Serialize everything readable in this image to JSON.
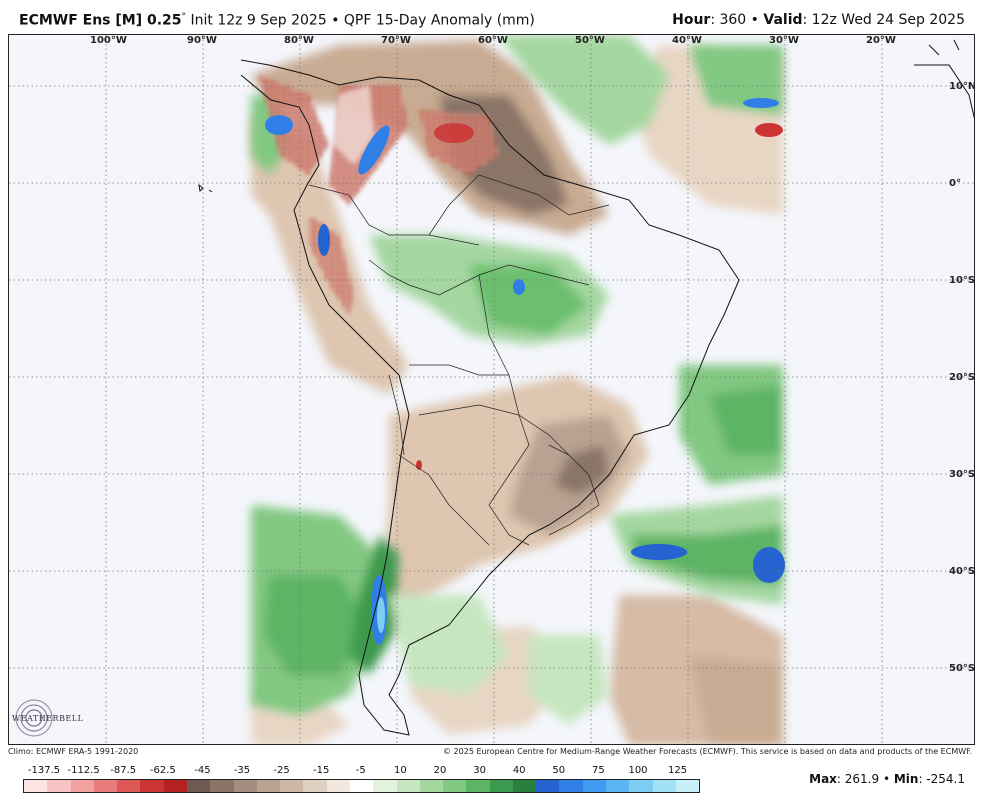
{
  "header": {
    "model": "ECMWF Ens [M] 0.25",
    "degree_mark": "°",
    "init": " Init 12z 9 Sep 2025 • QPF 15-Day Anomaly (mm)",
    "hour_label": "Hour",
    "hour_value": ": 360 • ",
    "valid_label": "Valid",
    "valid_value": ": 12z Wed 24 Sep 2025"
  },
  "map": {
    "lon_labels": [
      "100°W",
      "90°W",
      "80°W",
      "70°W",
      "60°W",
      "50°W",
      "40°W",
      "30°W",
      "20°W"
    ],
    "lat_labels": [
      "10°N",
      "0°",
      "10°S",
      "20°S",
      "30°S",
      "40°S",
      "50°S"
    ],
    "colors": {
      "ocean": "#f4f6fb",
      "dry_light": "#e8d6c4",
      "dry_mid": "#c9ab93",
      "dry_dark": "#8a7466",
      "wet_light": "#c6e6c0",
      "wet_mid": "#6cbf6e",
      "wet_dark": "#3c9a4e",
      "very_wet": "#2b6fe0",
      "very_dry": "#c9302c"
    }
  },
  "logo": {
    "text": "WEATHERBELL"
  },
  "credits": {
    "climo": "Climo: ECMWF ERA-5 1991-2020",
    "copyright": "© 2025 European Centre for Medium-Range Weather Forecasts (ECMWF). This service is based on data and products of the ECMWF."
  },
  "colorbar": {
    "labels": [
      "-137.5",
      "-112.5",
      "-87.5",
      "-62.5",
      "-45",
      "-35",
      "-25",
      "-15",
      "-5",
      "10",
      "20",
      "30",
      "40",
      "50",
      "75",
      "100",
      "125"
    ],
    "colors": [
      "#fde3e3",
      "#f8c3c3",
      "#f2a0a0",
      "#ea7b7b",
      "#de5757",
      "#cc3434",
      "#b22222",
      "#6e5a52",
      "#8a7466",
      "#a38d7e",
      "#b9a291",
      "#cdb8a6",
      "#e0d0c1",
      "#f2e8de",
      "#ffffff",
      "#e4f3df",
      "#c6e6c0",
      "#a4d7a0",
      "#82c882",
      "#5db465",
      "#3c9a4e",
      "#2a7f3e",
      "#2563d1",
      "#2f7fe6",
      "#3e9bf0",
      "#5bb5f2",
      "#7dcdf3",
      "#a3e2f6",
      "#c8f0fa"
    ]
  },
  "stats": {
    "max_label": "Max",
    "max_value": ": 261.9 • ",
    "min_label": "Min",
    "min_value": ": -254.1"
  }
}
